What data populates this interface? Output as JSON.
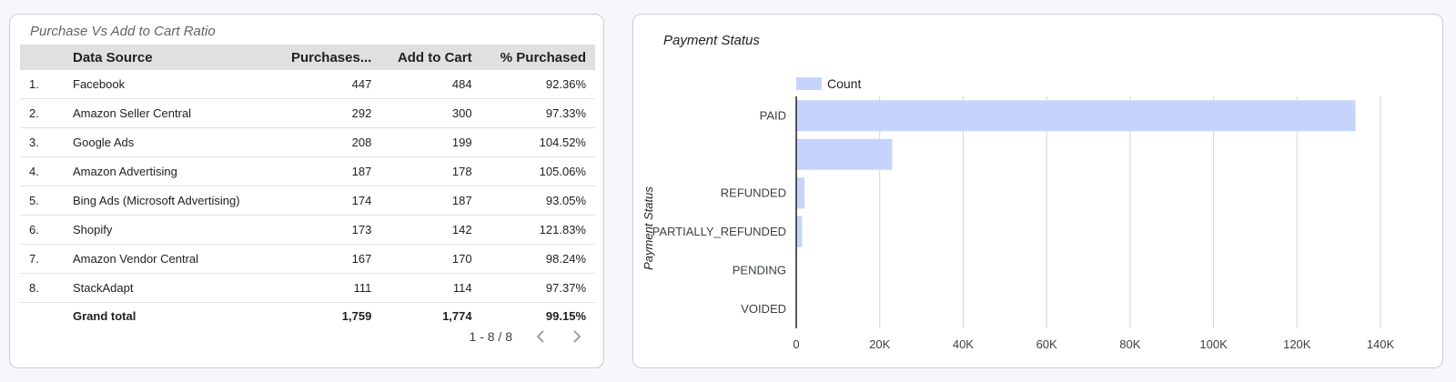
{
  "table": {
    "title": "Purchase Vs Add to Cart Ratio",
    "columns": [
      "Data Source",
      "Purchases...",
      "Add to Cart",
      "% Purchased"
    ],
    "rows": [
      {
        "idx": "1.",
        "source": "Facebook",
        "purchases": "447",
        "add_to_cart": "484",
        "pct": "92.36%"
      },
      {
        "idx": "2.",
        "source": "Amazon Seller Central",
        "purchases": "292",
        "add_to_cart": "300",
        "pct": "97.33%"
      },
      {
        "idx": "3.",
        "source": "Google Ads",
        "purchases": "208",
        "add_to_cart": "199",
        "pct": "104.52%"
      },
      {
        "idx": "4.",
        "source": "Amazon Advertising",
        "purchases": "187",
        "add_to_cart": "178",
        "pct": "105.06%"
      },
      {
        "idx": "5.",
        "source": "Bing Ads (Microsoft Advertising)",
        "purchases": "174",
        "add_to_cart": "187",
        "pct": "93.05%"
      },
      {
        "idx": "6.",
        "source": "Shopify",
        "purchases": "173",
        "add_to_cart": "142",
        "pct": "121.83%"
      },
      {
        "idx": "7.",
        "source": "Amazon Vendor Central",
        "purchases": "167",
        "add_to_cart": "170",
        "pct": "98.24%"
      },
      {
        "idx": "8.",
        "source": "StackAdapt",
        "purchases": "111",
        "add_to_cart": "114",
        "pct": "97.37%"
      }
    ],
    "total": {
      "label": "Grand total",
      "purchases": "1,759",
      "add_to_cart": "1,774",
      "pct": "99.15%"
    },
    "pagination": "1 - 8 / 8"
  },
  "chart_data": {
    "type": "bar",
    "orientation": "horizontal",
    "title": "Payment Status",
    "ylabel": "Payment Status",
    "categories": [
      "PAID",
      "",
      "REFUNDED",
      "PARTIALLY_REFUNDED",
      "PENDING",
      "VOIDED"
    ],
    "series": [
      {
        "name": "Count",
        "values": [
          134000,
          23000,
          2000,
          1400,
          0,
          0
        ]
      }
    ],
    "xlim": [
      0,
      140000
    ],
    "xticks": [
      "0",
      "20K",
      "40K",
      "60K",
      "80K",
      "100K",
      "120K",
      "140K"
    ],
    "grid": true,
    "legend": "top-left",
    "bar_color": "#c6d3fb"
  }
}
